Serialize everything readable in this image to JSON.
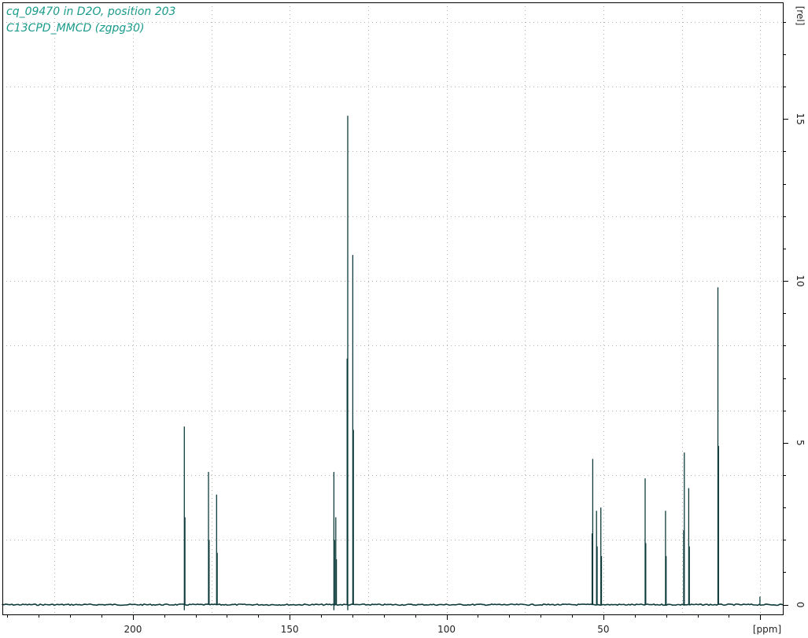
{
  "header": {
    "line1": "cq_09470 in D2O, position 203",
    "line2": "C13CPD_MMCD (zgpg30)"
  },
  "colors": {
    "spectrum": "#0d3b3b",
    "title": "#1a9a8a",
    "grid": "#b0b0b0",
    "frame": "#000000"
  },
  "chart_data": {
    "type": "line",
    "title": "cq_09470 in D2O, position 203",
    "subtitle": "C13CPD_MMCD (zgpg30)",
    "xlabel": "[ppm]",
    "ylabel": "[rel]",
    "xlim": [
      241.6,
      -7.2
    ],
    "ylim": [
      -0.3,
      18.6
    ],
    "x_reversed": true,
    "grid": true,
    "x_ticks": [
      200,
      150,
      100,
      50
    ],
    "x_tick_labels": [
      "200",
      "150",
      "100",
      "50"
    ],
    "y_ticks": [
      0,
      5,
      10,
      15
    ],
    "y_tick_labels": [
      "0",
      "5",
      "10",
      "15"
    ],
    "peaks": [
      {
        "x": 183.6,
        "y": 5.5
      },
      {
        "x": 183.4,
        "y": 2.7
      },
      {
        "x": 175.9,
        "y": 4.1
      },
      {
        "x": 175.7,
        "y": 2.0
      },
      {
        "x": 173.3,
        "y": 3.4
      },
      {
        "x": 173.1,
        "y": 1.6
      },
      {
        "x": 135.9,
        "y": 4.1
      },
      {
        "x": 135.7,
        "y": 2.0
      },
      {
        "x": 135.3,
        "y": 2.7
      },
      {
        "x": 135.1,
        "y": 1.4
      },
      {
        "x": 131.5,
        "y": 15.1
      },
      {
        "x": 131.7,
        "y": 7.6
      },
      {
        "x": 129.9,
        "y": 10.8
      },
      {
        "x": 129.7,
        "y": 5.4
      },
      {
        "x": 53.4,
        "y": 4.5
      },
      {
        "x": 53.6,
        "y": 2.2
      },
      {
        "x": 52.2,
        "y": 2.9
      },
      {
        "x": 52.0,
        "y": 1.8
      },
      {
        "x": 50.8,
        "y": 3.0
      },
      {
        "x": 50.6,
        "y": 1.5
      },
      {
        "x": 36.7,
        "y": 3.9
      },
      {
        "x": 36.5,
        "y": 1.9
      },
      {
        "x": 30.2,
        "y": 2.9
      },
      {
        "x": 30.0,
        "y": 1.5
      },
      {
        "x": 24.2,
        "y": 4.7
      },
      {
        "x": 24.4,
        "y": 2.3
      },
      {
        "x": 22.8,
        "y": 3.6
      },
      {
        "x": 22.6,
        "y": 1.8
      },
      {
        "x": 13.5,
        "y": 9.8
      },
      {
        "x": 13.3,
        "y": 4.9
      },
      {
        "x": 0.1,
        "y": 0.25
      }
    ]
  }
}
